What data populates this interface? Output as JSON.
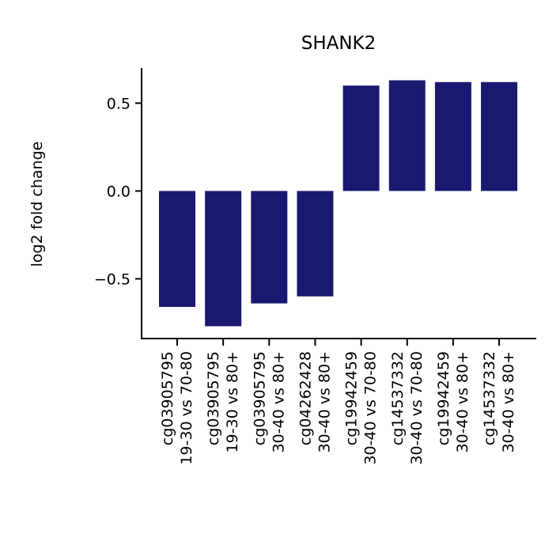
{
  "chart_data": {
    "type": "bar",
    "title": "SHANK2",
    "xlabel": "",
    "ylabel": "log2 fold change",
    "ylim": [
      -0.84,
      0.7
    ],
    "yticks": [
      -0.5,
      0.0,
      0.5
    ],
    "ytick_labels": [
      "−0.5",
      "0.0",
      "0.5"
    ],
    "color": "#191970",
    "grid": false,
    "categories": [
      [
        "cg03905795",
        "19-30 vs 70-80"
      ],
      [
        "cg03905795",
        "19-30 vs 80+"
      ],
      [
        "cg03905795",
        "30-40 vs 80+"
      ],
      [
        "cg04262428",
        "30-40 vs 80+"
      ],
      [
        "cg19942459",
        "30-40 vs 70-80"
      ],
      [
        "cg14537332",
        "30-40 vs 70-80"
      ],
      [
        "cg19942459",
        "30-40 vs 80+"
      ],
      [
        "cg14537332",
        "30-40 vs 80+"
      ]
    ],
    "values": [
      -0.66,
      -0.77,
      -0.64,
      -0.6,
      0.6,
      0.63,
      0.62,
      0.62
    ]
  }
}
